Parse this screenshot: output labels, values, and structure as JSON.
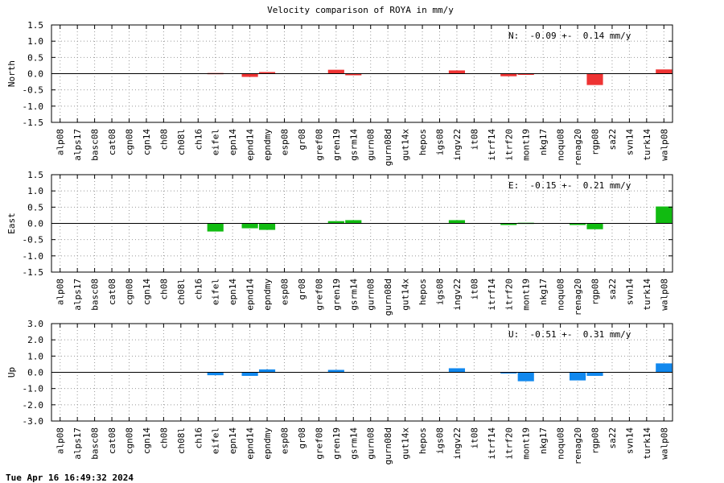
{
  "title": "Velocity comparison of ROYA in mm/y",
  "timestamp": "Tue Apr 16 16:49:32 2024",
  "chart_data": {
    "type": "bar",
    "title": "Velocity comparison of ROYA in mm/y",
    "categories": [
      "alp08",
      "alps17",
      "basc08",
      "cat08",
      "cgn08",
      "cgn14",
      "ch08",
      "ch08l",
      "ch16",
      "eifel",
      "epn14",
      "epnd14",
      "epndmy",
      "esp08",
      "gr08",
      "gref08",
      "gren19",
      "gsrm14",
      "gurn08",
      "gurn08d",
      "gut14x",
      "hepos",
      "igs08",
      "ingv22",
      "it08",
      "itrf14",
      "itrf20",
      "mont19",
      "nkg17",
      "noqu08",
      "renag20",
      "rgp08",
      "sa22",
      "svn14",
      "turk14",
      "walp08"
    ],
    "panels": [
      {
        "name": "North",
        "ylabel": "North",
        "color": "#ee3333",
        "ylim": [
          -1.5,
          1.5
        ],
        "yticks": [
          "1.5",
          "1.0",
          "0.5",
          "0.0",
          "-0.5",
          "-1.0",
          "-1.5"
        ],
        "annotation": "N:  -0.09 +-  0.14 mm/y",
        "values": [
          null,
          null,
          null,
          null,
          null,
          null,
          null,
          null,
          null,
          0.02,
          null,
          -0.1,
          0.05,
          null,
          null,
          null,
          0.12,
          -0.05,
          null,
          null,
          null,
          null,
          null,
          0.1,
          null,
          null,
          -0.08,
          -0.03,
          null,
          null,
          null,
          -0.35,
          null,
          null,
          null,
          0.13
        ]
      },
      {
        "name": "East",
        "ylabel": "East",
        "color": "#11bb11",
        "ylim": [
          -1.5,
          1.5
        ],
        "yticks": [
          "1.5",
          "1.0",
          "0.5",
          "0.0",
          "-0.5",
          "-1.0",
          "-1.5"
        ],
        "annotation": "E:  -0.15 +-  0.21 mm/y",
        "values": [
          null,
          null,
          null,
          null,
          null,
          null,
          null,
          null,
          null,
          -0.25,
          null,
          -0.15,
          -0.2,
          null,
          null,
          null,
          0.07,
          0.1,
          null,
          null,
          null,
          null,
          null,
          0.1,
          null,
          null,
          -0.05,
          0.02,
          null,
          null,
          -0.05,
          -0.18,
          null,
          null,
          null,
          0.52
        ]
      },
      {
        "name": "Up",
        "ylabel": "Up",
        "color": "#1188ee",
        "ylim": [
          -3.0,
          3.0
        ],
        "yticks": [
          "3.0",
          "2.0",
          "1.0",
          "0.0",
          "-1.0",
          "-2.0",
          "-3.0"
        ],
        "annotation": "U:  -0.51 +-  0.31 mm/y",
        "values": [
          null,
          null,
          null,
          null,
          null,
          null,
          null,
          null,
          null,
          -0.18,
          null,
          -0.22,
          0.18,
          null,
          null,
          null,
          0.15,
          null,
          null,
          null,
          null,
          null,
          null,
          0.25,
          null,
          null,
          -0.05,
          -0.55,
          null,
          null,
          -0.5,
          -0.22,
          null,
          null,
          null,
          0.55
        ]
      }
    ]
  }
}
